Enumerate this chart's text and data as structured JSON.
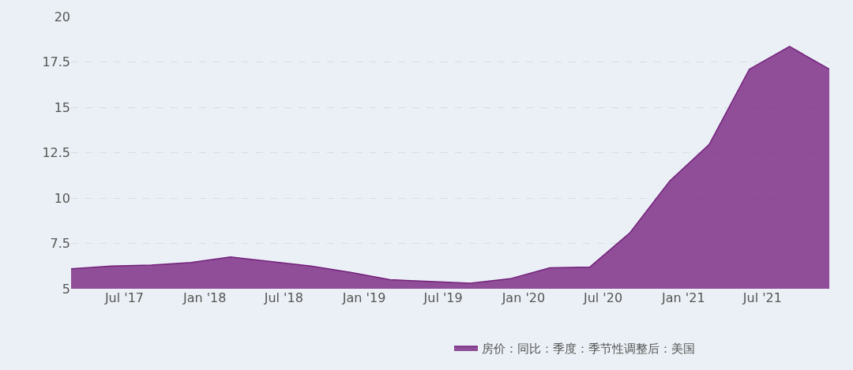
{
  "chart_data": {
    "type": "area",
    "x": [
      "2017-03-01",
      "2017-06-01",
      "2017-09-01",
      "2017-12-01",
      "2018-03-01",
      "2018-06-01",
      "2018-09-01",
      "2018-12-01",
      "2019-03-01",
      "2019-06-01",
      "2019-09-01",
      "2019-12-01",
      "2020-03-01",
      "2020-06-01",
      "2020-09-01",
      "2020-12-01",
      "2021-03-01",
      "2021-06-01",
      "2021-09-01",
      "2021-12-01"
    ],
    "series": [
      {
        "name": "房价：同比：季度：季节性调整后：美国",
        "color": "#74207c",
        "values": [
          6.1,
          6.25,
          6.3,
          6.45,
          6.75,
          6.5,
          6.25,
          5.9,
          5.5,
          5.4,
          5.3,
          5.55,
          6.15,
          6.2,
          8.1,
          10.95,
          12.95,
          17.1,
          18.35,
          17.1
        ]
      }
    ],
    "xlim": [
      "2017-03-01",
      "2021-12-01"
    ],
    "xticks": [
      {
        "value": "2017-07-01",
        "label": "Jul '17"
      },
      {
        "value": "2018-01-01",
        "label": "Jan '18"
      },
      {
        "value": "2018-07-01",
        "label": "Jul '18"
      },
      {
        "value": "2019-01-01",
        "label": "Jan '19"
      },
      {
        "value": "2019-07-01",
        "label": "Jul '19"
      },
      {
        "value": "2020-01-01",
        "label": "Jan '20"
      },
      {
        "value": "2020-07-01",
        "label": "Jul '20"
      },
      {
        "value": "2021-01-01",
        "label": "Jan '21"
      },
      {
        "value": "2021-07-01",
        "label": "Jul '21"
      }
    ],
    "ylim": [
      5,
      20
    ],
    "yticks": [
      5,
      7.5,
      10,
      12.5,
      15,
      17.5,
      20
    ],
    "grid": "y",
    "legend": "bottom"
  }
}
